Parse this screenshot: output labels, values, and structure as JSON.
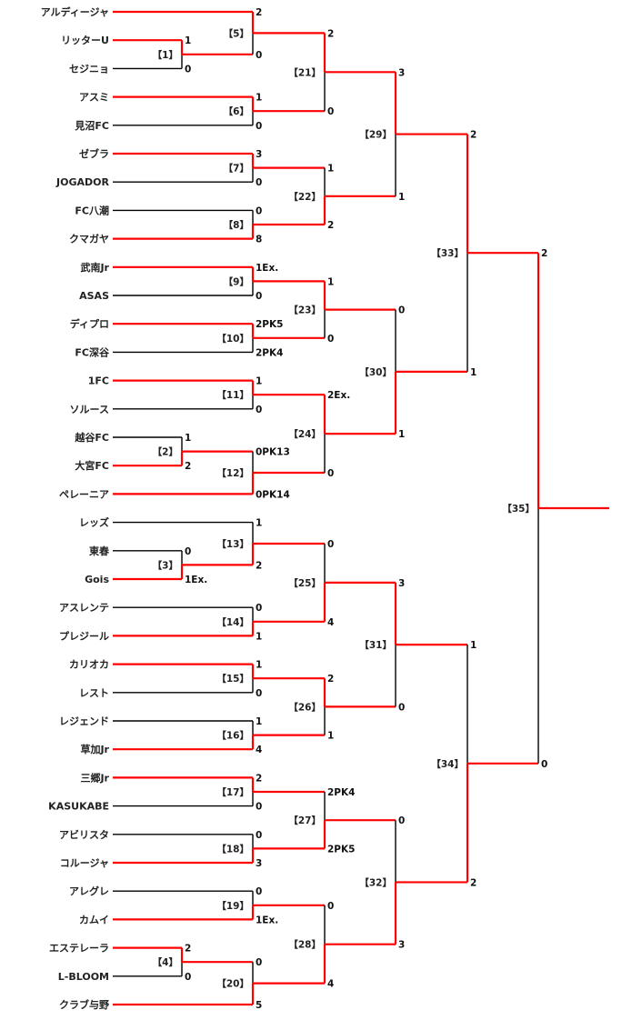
{
  "colors": {
    "winner_line": "#ff0000",
    "loser_line": "#000000"
  },
  "teams": [
    "アルディージャ",
    "リッターU",
    "セジニョ",
    "アスミ",
    "見沼FC",
    "ゼブラ",
    "JOGADOR",
    "FC八潮",
    "クマガヤ",
    "武南Jr",
    "ASAS",
    "ディプロ",
    "FC深谷",
    "1FC",
    "ソルース",
    "越谷FC",
    "大宮FC",
    "ペレーニア",
    "レッズ",
    "東春",
    "Gois",
    "アスレンテ",
    "プレジール",
    "カリオカ",
    "レスト",
    "レジェンド",
    "草加Jr",
    "三郷Jr",
    "KASUKABE",
    "アビリスタ",
    "コルージャ",
    "アレグレ",
    "カムイ",
    "エステレーラ",
    "L-BLOOM",
    "クラブ与野"
  ],
  "matches": [
    {
      "id": 1,
      "label": "【1】",
      "round": 0,
      "inputs": [
        "t1",
        "t2"
      ],
      "scores": [
        "1",
        "0"
      ],
      "winner": 0
    },
    {
      "id": 2,
      "label": "【2】",
      "round": 0,
      "inputs": [
        "t15",
        "t16"
      ],
      "scores": [
        "1",
        "2"
      ],
      "winner": 1
    },
    {
      "id": 3,
      "label": "【3】",
      "round": 0,
      "inputs": [
        "t19",
        "t20"
      ],
      "scores": [
        "0",
        "1Ex."
      ],
      "winner": 1
    },
    {
      "id": 4,
      "label": "【4】",
      "round": 0,
      "inputs": [
        "t33",
        "t34"
      ],
      "scores": [
        "2",
        "0"
      ],
      "winner": 0
    },
    {
      "id": 5,
      "label": "【5】",
      "round": 1,
      "inputs": [
        "t0",
        "m1"
      ],
      "scores": [
        "2",
        "0"
      ],
      "winner": 0
    },
    {
      "id": 6,
      "label": "【6】",
      "round": 1,
      "inputs": [
        "t3",
        "t4"
      ],
      "scores": [
        "1",
        "0"
      ],
      "winner": 0
    },
    {
      "id": 7,
      "label": "【7】",
      "round": 1,
      "inputs": [
        "t5",
        "t6"
      ],
      "scores": [
        "3",
        "0"
      ],
      "winner": 0
    },
    {
      "id": 8,
      "label": "【8】",
      "round": 1,
      "inputs": [
        "t7",
        "t8"
      ],
      "scores": [
        "0",
        "8"
      ],
      "winner": 1
    },
    {
      "id": 9,
      "label": "【9】",
      "round": 1,
      "inputs": [
        "t9",
        "t10"
      ],
      "scores": [
        "1Ex.",
        "0"
      ],
      "winner": 0
    },
    {
      "id": 10,
      "label": "【10】",
      "round": 1,
      "inputs": [
        "t11",
        "t12"
      ],
      "scores": [
        "2PK5",
        "2PK4"
      ],
      "winner": 0
    },
    {
      "id": 11,
      "label": "【11】",
      "round": 1,
      "inputs": [
        "t13",
        "t14"
      ],
      "scores": [
        "1",
        "0"
      ],
      "winner": 0
    },
    {
      "id": 12,
      "label": "【12】",
      "round": 1,
      "inputs": [
        "m2",
        "t17"
      ],
      "scores": [
        "0PK13",
        "0PK14"
      ],
      "winner": 1
    },
    {
      "id": 13,
      "label": "【13】",
      "round": 1,
      "inputs": [
        "t18",
        "m3"
      ],
      "scores": [
        "1",
        "2"
      ],
      "winner": 1
    },
    {
      "id": 14,
      "label": "【14】",
      "round": 1,
      "inputs": [
        "t21",
        "t22"
      ],
      "scores": [
        "0",
        "1"
      ],
      "winner": 1
    },
    {
      "id": 15,
      "label": "【15】",
      "round": 1,
      "inputs": [
        "t23",
        "t24"
      ],
      "scores": [
        "1",
        "0"
      ],
      "winner": 0
    },
    {
      "id": 16,
      "label": "【16】",
      "round": 1,
      "inputs": [
        "t25",
        "t26"
      ],
      "scores": [
        "1",
        "4"
      ],
      "winner": 1
    },
    {
      "id": 17,
      "label": "【17】",
      "round": 1,
      "inputs": [
        "t27",
        "t28"
      ],
      "scores": [
        "2",
        "0"
      ],
      "winner": 0
    },
    {
      "id": 18,
      "label": "【18】",
      "round": 1,
      "inputs": [
        "t29",
        "t30"
      ],
      "scores": [
        "0",
        "3"
      ],
      "winner": 1
    },
    {
      "id": 19,
      "label": "【19】",
      "round": 1,
      "inputs": [
        "t31",
        "t32"
      ],
      "scores": [
        "0",
        "1Ex."
      ],
      "winner": 1
    },
    {
      "id": 20,
      "label": "【20】",
      "round": 1,
      "inputs": [
        "m4",
        "t35"
      ],
      "scores": [
        "0",
        "5"
      ],
      "winner": 1
    },
    {
      "id": 21,
      "label": "【21】",
      "round": 2,
      "inputs": [
        "m5",
        "m6"
      ],
      "scores": [
        "2",
        "0"
      ],
      "winner": 0
    },
    {
      "id": 22,
      "label": "【22】",
      "round": 2,
      "inputs": [
        "m7",
        "m8"
      ],
      "scores": [
        "1",
        "2"
      ],
      "winner": 1
    },
    {
      "id": 23,
      "label": "【23】",
      "round": 2,
      "inputs": [
        "m9",
        "m10"
      ],
      "scores": [
        "1",
        "0"
      ],
      "winner": 0
    },
    {
      "id": 24,
      "label": "【24】",
      "round": 2,
      "inputs": [
        "m11",
        "m12"
      ],
      "scores": [
        "2Ex.",
        "0"
      ],
      "winner": 0
    },
    {
      "id": 25,
      "label": "【25】",
      "round": 2,
      "inputs": [
        "m13",
        "m14"
      ],
      "scores": [
        "0",
        "4"
      ],
      "winner": 1
    },
    {
      "id": 26,
      "label": "【26】",
      "round": 2,
      "inputs": [
        "m15",
        "m16"
      ],
      "scores": [
        "2",
        "1"
      ],
      "winner": 0
    },
    {
      "id": 27,
      "label": "【27】",
      "round": 2,
      "inputs": [
        "m17",
        "m18"
      ],
      "scores": [
        "2PK4",
        "2PK5"
      ],
      "winner": 1
    },
    {
      "id": 28,
      "label": "【28】",
      "round": 2,
      "inputs": [
        "m19",
        "m20"
      ],
      "scores": [
        "0",
        "4"
      ],
      "winner": 1
    },
    {
      "id": 29,
      "label": "【29】",
      "round": 3,
      "inputs": [
        "m21",
        "m22"
      ],
      "scores": [
        "3",
        "1"
      ],
      "winner": 0
    },
    {
      "id": 30,
      "label": "【30】",
      "round": 3,
      "inputs": [
        "m23",
        "m24"
      ],
      "scores": [
        "0",
        "1"
      ],
      "winner": 1
    },
    {
      "id": 31,
      "label": "【31】",
      "round": 3,
      "inputs": [
        "m25",
        "m26"
      ],
      "scores": [
        "3",
        "0"
      ],
      "winner": 0
    },
    {
      "id": 32,
      "label": "【32】",
      "round": 3,
      "inputs": [
        "m27",
        "m28"
      ],
      "scores": [
        "0",
        "3"
      ],
      "winner": 1
    },
    {
      "id": 33,
      "label": "【33】",
      "round": 4,
      "inputs": [
        "m29",
        "m30"
      ],
      "scores": [
        "2",
        "1"
      ],
      "winner": 0
    },
    {
      "id": 34,
      "label": "【34】",
      "round": 4,
      "inputs": [
        "m31",
        "m32"
      ],
      "scores": [
        "1",
        "2"
      ],
      "winner": 1
    },
    {
      "id": 35,
      "label": "【35】",
      "round": 5,
      "inputs": [
        "m33",
        "m34"
      ],
      "scores": [
        "2",
        "0"
      ],
      "winner": 0
    }
  ]
}
